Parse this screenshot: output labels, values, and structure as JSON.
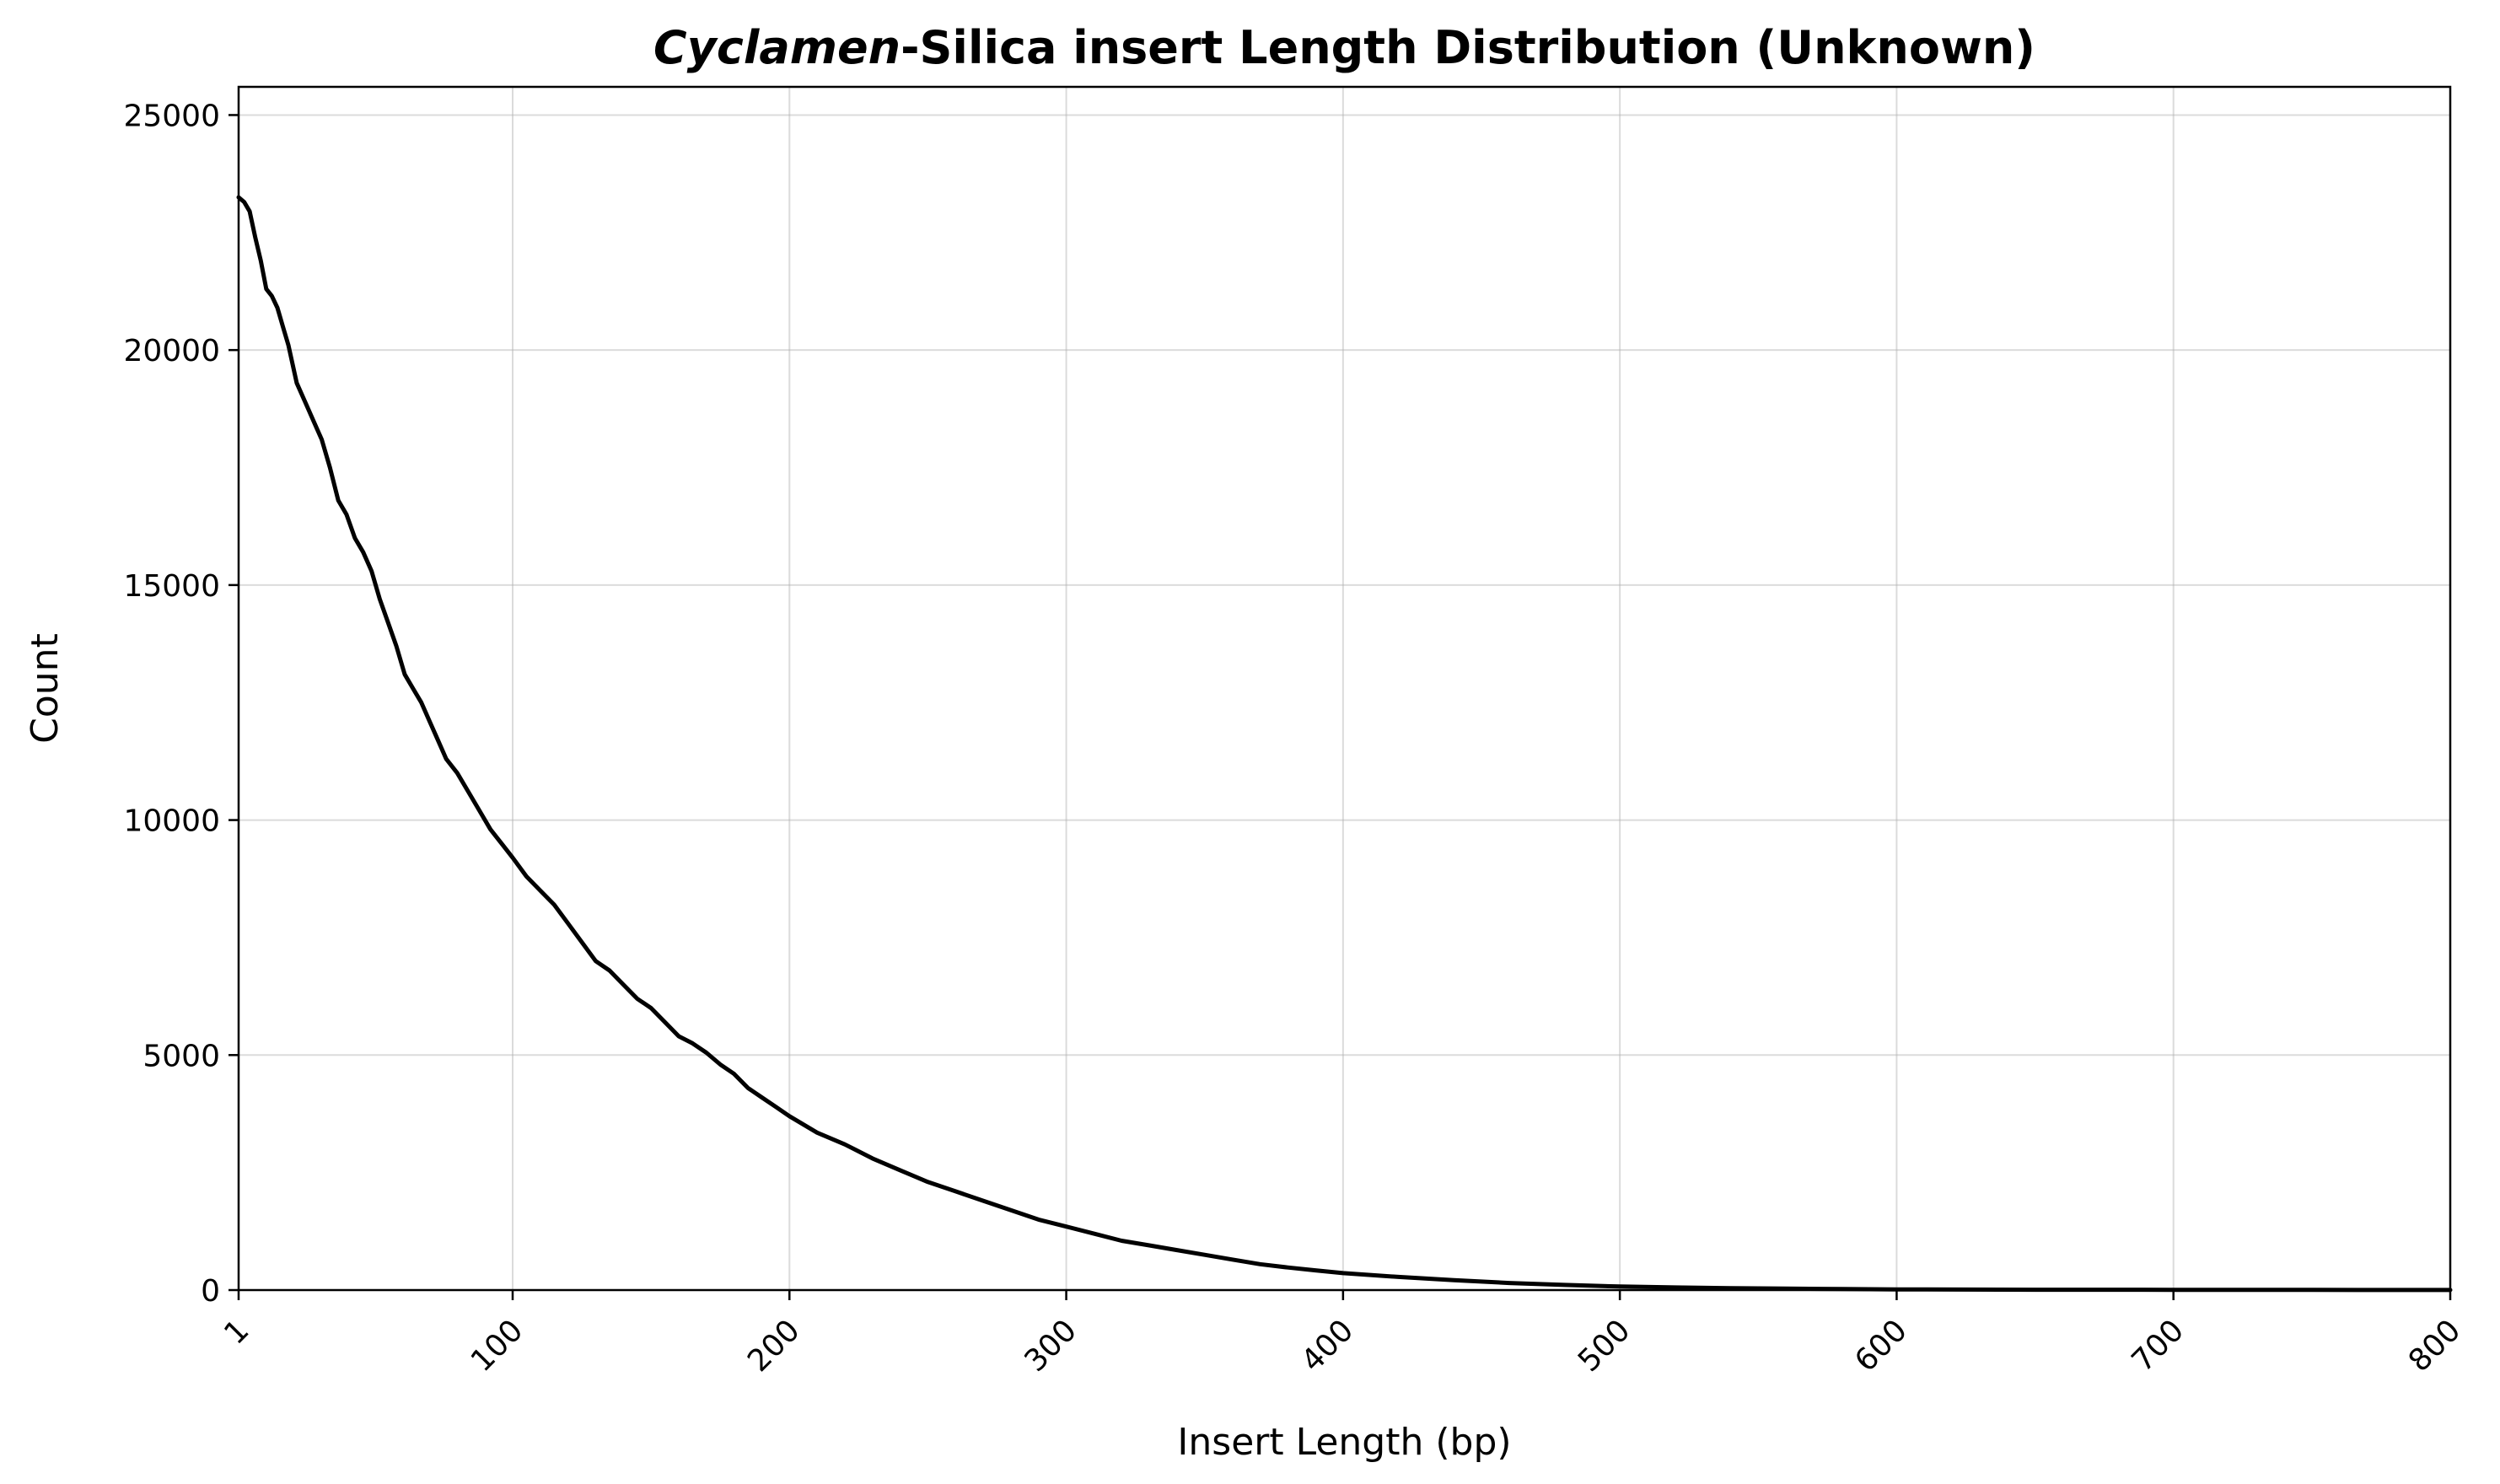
{
  "chart_data": {
    "type": "line",
    "title_italic": "Cyclamen",
    "title_rest": "-Silica insert Length Distribution (Unknown)",
    "xlabel": "Insert Length (bp)",
    "ylabel": "Count",
    "xlim": [
      1,
      800
    ],
    "ylim": [
      0,
      25600
    ],
    "x_ticks": [
      1,
      100,
      200,
      300,
      400,
      500,
      600,
      700,
      800
    ],
    "y_ticks": [
      0,
      5000,
      10000,
      15000,
      20000,
      25000
    ],
    "grid": true,
    "legend": "none",
    "line_color": "#000000",
    "series": [
      {
        "x": [
          1,
          3,
          5,
          7,
          9,
          11,
          13,
          15,
          17,
          19,
          22,
          25,
          28,
          31,
          34,
          37,
          40,
          43,
          46,
          49,
          52,
          55,
          58,
          61,
          64,
          67,
          70,
          73,
          76,
          80,
          84,
          88,
          92,
          96,
          100,
          105,
          110,
          115,
          120,
          125,
          130,
          135,
          140,
          145,
          150,
          155,
          160,
          165,
          170,
          175,
          180,
          185,
          190,
          195,
          200,
          210,
          220,
          230,
          240,
          250,
          260,
          270,
          280,
          290,
          300,
          310,
          320,
          330,
          340,
          350,
          360,
          370,
          380,
          390,
          400,
          420,
          440,
          460,
          480,
          500,
          520,
          540,
          560,
          580,
          600,
          650,
          700,
          750,
          800
        ],
        "y": [
          23250,
          23150,
          22950,
          22400,
          21900,
          21300,
          21150,
          20900,
          20500,
          20100,
          19300,
          18900,
          18500,
          18100,
          17500,
          16800,
          16500,
          16000,
          15700,
          15300,
          14700,
          14200,
          13700,
          13100,
          12800,
          12500,
          12100,
          11700,
          11300,
          11000,
          10600,
          10200,
          9800,
          9500,
          9200,
          8800,
          8500,
          8200,
          7800,
          7400,
          7000,
          6800,
          6500,
          6200,
          6000,
          5700,
          5400,
          5250,
          5050,
          4800,
          4600,
          4300,
          4100,
          3900,
          3700,
          3350,
          3100,
          2800,
          2550,
          2300,
          2100,
          1900,
          1700,
          1500,
          1350,
          1200,
          1050,
          950,
          850,
          750,
          650,
          550,
          480,
          420,
          360,
          280,
          210,
          150,
          110,
          75,
          55,
          40,
          30,
          22,
          15,
          8,
          5,
          3,
          2
        ]
      }
    ]
  }
}
